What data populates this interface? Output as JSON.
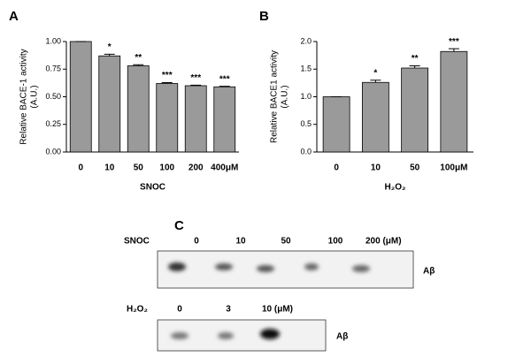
{
  "chart_data": [
    {
      "type": "bar",
      "panel": "A",
      "ylabel": [
        "Relative BACE-1 activity",
        "(A.U.)"
      ],
      "xlabel": "SNOC",
      "categories": [
        "0",
        "10",
        "50",
        "100",
        "200",
        "400μM"
      ],
      "values": [
        1.0,
        0.87,
        0.78,
        0.62,
        0.6,
        0.59
      ],
      "errors": [
        0,
        0.015,
        0.01,
        0.008,
        0.005,
        0.005
      ],
      "annotations": [
        null,
        "*",
        "**",
        "***",
        "***",
        "***"
      ],
      "color": "#9a9a9a",
      "ylim": [
        0,
        1.0
      ],
      "yticks": [
        {
          "value": 0,
          "label": "0.00"
        },
        {
          "value": 0.25,
          "label": "0.25"
        },
        {
          "value": 0.5,
          "label": "0.50"
        },
        {
          "value": 0.75,
          "label": "0.75"
        },
        {
          "value": 1.0,
          "label": "1.00"
        }
      ]
    },
    {
      "type": "bar",
      "panel": "B",
      "ylabel": [
        "Relative BACE1 activity",
        "(A.U.)"
      ],
      "xlabel": "H₂O₂",
      "categories": [
        "0",
        "10",
        "50",
        "100μM"
      ],
      "values": [
        1.0,
        1.26,
        1.52,
        1.82
      ],
      "errors": [
        0,
        0.04,
        0.04,
        0.05
      ],
      "annotations": [
        null,
        "*",
        "**",
        "***"
      ],
      "color": "#9a9a9a",
      "ylim": [
        0,
        2.0
      ],
      "yticks": [
        {
          "value": 0,
          "label": "0.0"
        },
        {
          "value": 0.5,
          "label": "0.5"
        },
        {
          "value": 1.0,
          "label": "1.0"
        },
        {
          "value": 1.5,
          "label": "1.5"
        },
        {
          "value": 2.0,
          "label": "2.0"
        }
      ]
    }
  ],
  "blots": {
    "panel": "C",
    "rows": [
      {
        "treatment": "SNOC",
        "doses": [
          "0",
          "10",
          "50",
          "100",
          "200 (μM)"
        ],
        "band": "Aβ"
      },
      {
        "treatment": "H₂O₂",
        "doses": [
          "0",
          "3",
          "10 (μM)"
        ],
        "band": "Aβ"
      }
    ]
  }
}
